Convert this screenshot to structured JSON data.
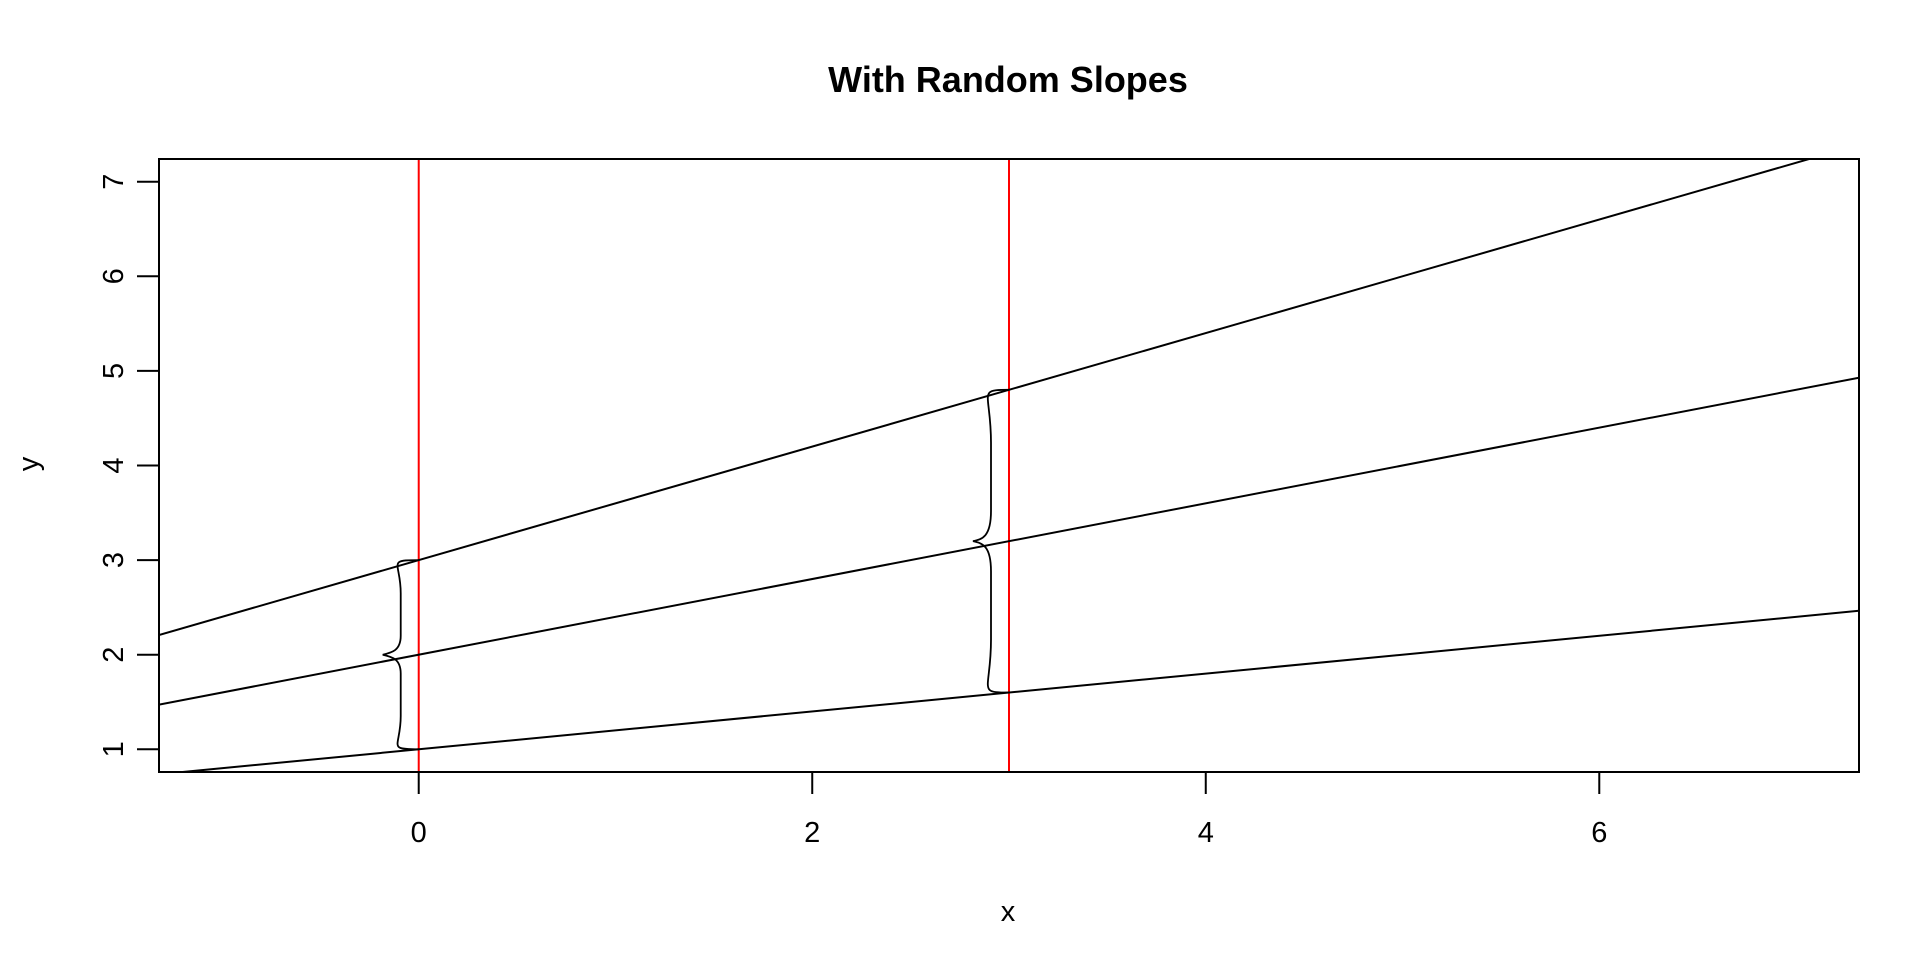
{
  "chart_data": {
    "type": "line",
    "title": "With Random Slopes",
    "xlabel": "x",
    "ylabel": "y",
    "xlim": [
      -1.32,
      7.32
    ],
    "ylim": [
      0.76,
      7.24
    ],
    "x_ticks": [
      0,
      2,
      4,
      6
    ],
    "y_ticks": [
      1,
      2,
      3,
      4,
      5,
      6,
      7
    ],
    "grid": false,
    "legend": "none",
    "series": [
      {
        "intercept": 3,
        "slope": 0.6
      },
      {
        "intercept": 2,
        "slope": 0.4
      },
      {
        "intercept": 1,
        "slope": 0.2
      }
    ],
    "vertical_lines": [
      {
        "x": 0,
        "color": "#ff0000"
      },
      {
        "x": 3,
        "color": "#ff0000"
      }
    ],
    "braces": [
      {
        "x": 0,
        "y_bottom": 1,
        "y_top": 3,
        "side": "left"
      },
      {
        "x": 3,
        "y_bottom": 1.6,
        "y_top": 4.8,
        "side": "left"
      }
    ],
    "line_color": "#000000"
  }
}
